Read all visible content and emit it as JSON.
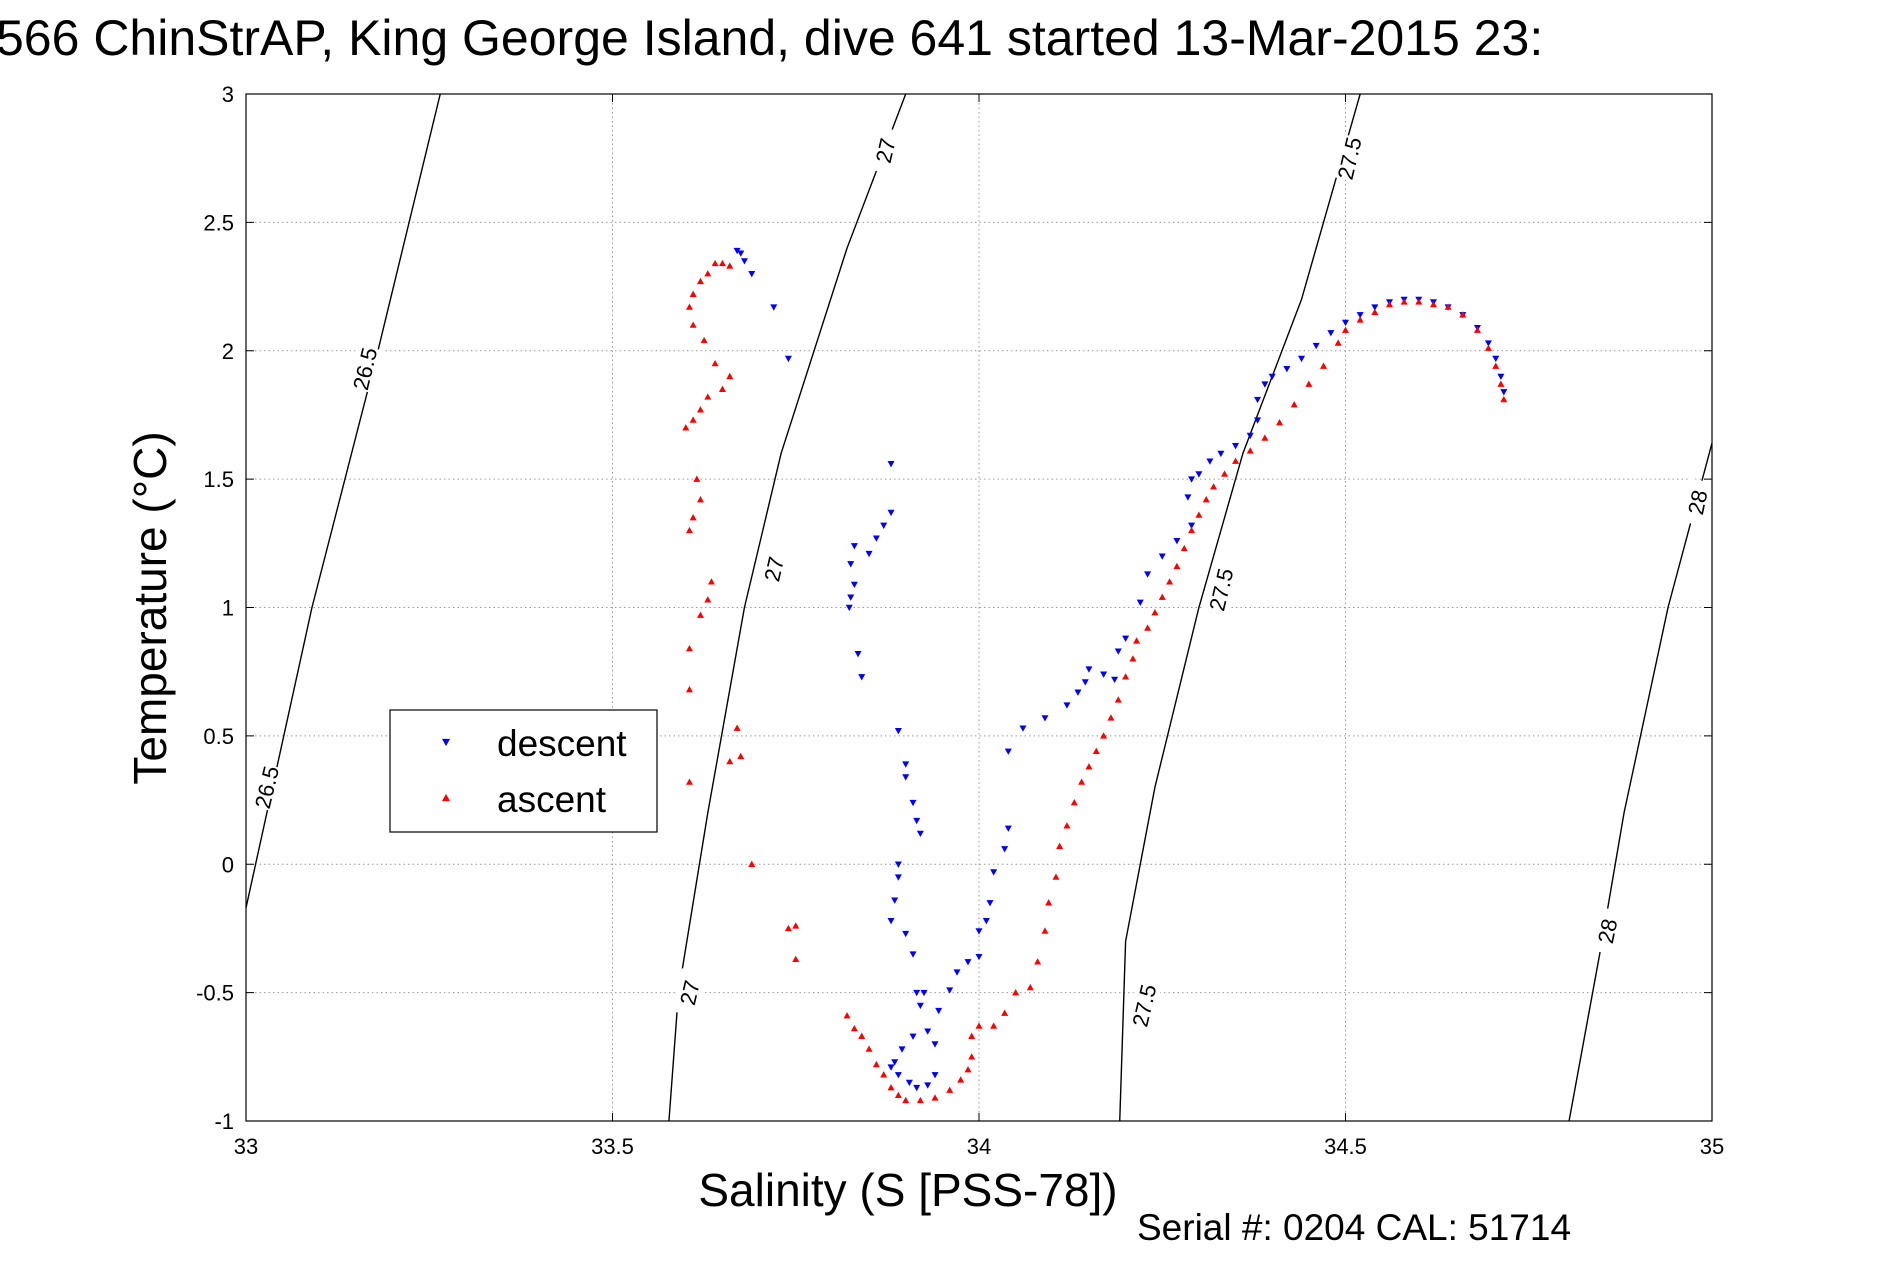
{
  "figure": {
    "title": "566 ChinStrAP, King George Island, dive 641 started 13-Mar-2015 23:",
    "footer": "Serial #: 0204  CAL: 51714"
  },
  "chart_data": {
    "type": "scatter",
    "title": "566 ChinStrAP, King George Island, dive 641 started 13-Mar-2015 23:",
    "xlabel": "Salinity (S [PSS-78])",
    "ylabel": "Temperature (°C)",
    "xlim": [
      33,
      35
    ],
    "ylim": [
      -1,
      3
    ],
    "xticks": [
      33,
      33.5,
      34,
      34.5,
      35
    ],
    "xtick_labels": [
      "33",
      "33.5",
      "34",
      "34.5",
      "35"
    ],
    "yticks": [
      -1,
      -0.5,
      0,
      0.5,
      1,
      1.5,
      2,
      2.5,
      3
    ],
    "ytick_labels": [
      "-1",
      "-0.5",
      "0",
      "0.5",
      "1",
      "1.5",
      "2",
      "2.5",
      "3"
    ],
    "grid": true,
    "legend_position": "left-middle",
    "density_contours": [
      {
        "level": "26.5",
        "points": [
          [
            33.265,
            3
          ],
          [
            33.18,
            2.0
          ],
          [
            33.09,
            1.0
          ],
          [
            33.0,
            -0.17
          ]
        ],
        "labels": [
          {
            "s": 33.162,
            "t": 1.93
          },
          {
            "s": 33.028,
            "t": 0.3
          }
        ]
      },
      {
        "level": "27",
        "points": [
          [
            33.9,
            3
          ],
          [
            33.82,
            2.4
          ],
          [
            33.73,
            1.6
          ],
          [
            33.68,
            1.0
          ],
          [
            33.63,
            0.2
          ],
          [
            33.59,
            -0.5
          ],
          [
            33.577,
            -1
          ]
        ],
        "labels": [
          {
            "s": 33.872,
            "t": 2.78
          },
          {
            "s": 33.72,
            "t": 1.15
          },
          {
            "s": 33.605,
            "t": -0.5
          }
        ]
      },
      {
        "level": "27.5",
        "points": [
          [
            34.52,
            3
          ],
          [
            34.44,
            2.2
          ],
          [
            34.36,
            1.6
          ],
          [
            34.3,
            1.0
          ],
          [
            34.24,
            0.3
          ],
          [
            34.2,
            -0.3
          ],
          [
            34.192,
            -1
          ]
        ],
        "labels": [
          {
            "s": 34.505,
            "t": 2.75
          },
          {
            "s": 34.33,
            "t": 1.07
          },
          {
            "s": 34.225,
            "t": -0.55
          }
        ]
      },
      {
        "level": "28",
        "points": [
          [
            35,
            1.64
          ],
          [
            34.94,
            1.0
          ],
          [
            34.88,
            0.2
          ],
          [
            34.85,
            -0.3
          ],
          [
            34.805,
            -1
          ]
        ],
        "labels": [
          {
            "s": 34.98,
            "t": 1.41
          },
          {
            "s": 34.857,
            "t": -0.26
          }
        ]
      }
    ],
    "series": [
      {
        "name": "descent",
        "color": "#0000ff",
        "marker": "triangle-down",
        "points": [
          [
            33.67,
            2.39
          ],
          [
            33.675,
            2.38
          ],
          [
            33.68,
            2.35
          ],
          [
            33.69,
            2.3
          ],
          [
            33.72,
            2.17
          ],
          [
            33.74,
            1.97
          ],
          [
            33.88,
            1.56
          ],
          [
            33.88,
            1.37
          ],
          [
            33.87,
            1.32
          ],
          [
            33.86,
            1.27
          ],
          [
            33.85,
            1.21
          ],
          [
            33.83,
            1.24
          ],
          [
            33.825,
            1.17
          ],
          [
            33.83,
            1.09
          ],
          [
            33.825,
            1.04
          ],
          [
            33.823,
            1.0
          ],
          [
            33.835,
            0.82
          ],
          [
            33.84,
            0.73
          ],
          [
            33.89,
            0.52
          ],
          [
            33.9,
            0.39
          ],
          [
            33.9,
            0.34
          ],
          [
            33.91,
            0.24
          ],
          [
            33.915,
            0.17
          ],
          [
            33.92,
            0.12
          ],
          [
            33.89,
            0.0
          ],
          [
            33.89,
            -0.05
          ],
          [
            33.885,
            -0.14
          ],
          [
            33.88,
            -0.22
          ],
          [
            33.9,
            -0.27
          ],
          [
            33.91,
            -0.35
          ],
          [
            33.915,
            -0.5
          ],
          [
            33.925,
            -0.5
          ],
          [
            33.92,
            -0.55
          ],
          [
            33.91,
            -0.67
          ],
          [
            33.895,
            -0.72
          ],
          [
            33.885,
            -0.77
          ],
          [
            33.88,
            -0.79
          ],
          [
            33.89,
            -0.82
          ],
          [
            33.905,
            -0.85
          ],
          [
            33.915,
            -0.87
          ],
          [
            33.93,
            -0.86
          ],
          [
            33.94,
            -0.82
          ],
          [
            33.94,
            -0.7
          ],
          [
            33.93,
            -0.65
          ],
          [
            33.945,
            -0.57
          ],
          [
            33.96,
            -0.49
          ],
          [
            33.97,
            -0.42
          ],
          [
            33.985,
            -0.38
          ],
          [
            34.0,
            -0.36
          ],
          [
            34.0,
            -0.26
          ],
          [
            34.01,
            -0.22
          ],
          [
            34.015,
            -0.15
          ],
          [
            34.02,
            -0.03
          ],
          [
            34.035,
            0.06
          ],
          [
            34.04,
            0.14
          ],
          [
            34.04,
            0.44
          ],
          [
            34.06,
            0.53
          ],
          [
            34.09,
            0.57
          ],
          [
            34.12,
            0.62
          ],
          [
            34.135,
            0.67
          ],
          [
            34.145,
            0.71
          ],
          [
            34.15,
            0.76
          ],
          [
            34.17,
            0.74
          ],
          [
            34.185,
            0.72
          ],
          [
            34.19,
            0.83
          ],
          [
            34.2,
            0.88
          ],
          [
            34.22,
            1.02
          ],
          [
            34.23,
            1.13
          ],
          [
            34.25,
            1.2
          ],
          [
            34.27,
            1.26
          ],
          [
            34.29,
            1.32
          ],
          [
            34.285,
            1.43
          ],
          [
            34.29,
            1.5
          ],
          [
            34.3,
            1.52
          ],
          [
            34.315,
            1.57
          ],
          [
            34.33,
            1.6
          ],
          [
            34.35,
            1.63
          ],
          [
            34.37,
            1.67
          ],
          [
            34.38,
            1.73
          ],
          [
            34.38,
            1.81
          ],
          [
            34.39,
            1.87
          ],
          [
            34.4,
            1.9
          ],
          [
            34.42,
            1.93
          ],
          [
            34.44,
            1.97
          ],
          [
            34.46,
            2.02
          ],
          [
            34.48,
            2.07
          ],
          [
            34.5,
            2.11
          ],
          [
            34.52,
            2.14
          ],
          [
            34.54,
            2.17
          ],
          [
            34.56,
            2.19
          ],
          [
            34.58,
            2.2
          ],
          [
            34.6,
            2.2
          ],
          [
            34.62,
            2.19
          ],
          [
            34.64,
            2.17
          ],
          [
            34.66,
            2.14
          ],
          [
            34.68,
            2.09
          ],
          [
            34.695,
            2.03
          ],
          [
            34.705,
            1.97
          ],
          [
            34.712,
            1.9
          ],
          [
            34.716,
            1.84
          ]
        ]
      },
      {
        "name": "ascent",
        "color": "#ff0000",
        "marker": "triangle-up",
        "points": [
          [
            33.66,
            2.33
          ],
          [
            33.65,
            2.34
          ],
          [
            33.64,
            2.34
          ],
          [
            33.63,
            2.3
          ],
          [
            33.62,
            2.27
          ],
          [
            33.61,
            2.22
          ],
          [
            33.605,
            2.17
          ],
          [
            33.61,
            2.1
          ],
          [
            33.625,
            2.04
          ],
          [
            33.64,
            1.95
          ],
          [
            33.66,
            1.9
          ],
          [
            33.65,
            1.85
          ],
          [
            33.63,
            1.82
          ],
          [
            33.62,
            1.77
          ],
          [
            33.61,
            1.73
          ],
          [
            33.6,
            1.7
          ],
          [
            33.615,
            1.5
          ],
          [
            33.62,
            1.42
          ],
          [
            33.61,
            1.35
          ],
          [
            33.605,
            1.3
          ],
          [
            33.635,
            1.1
          ],
          [
            33.63,
            1.03
          ],
          [
            33.62,
            0.97
          ],
          [
            33.605,
            0.84
          ],
          [
            33.605,
            0.68
          ],
          [
            33.67,
            0.53
          ],
          [
            33.66,
            0.4
          ],
          [
            33.675,
            0.42
          ],
          [
            33.605,
            0.32
          ],
          [
            33.69,
            0.0
          ],
          [
            33.74,
            -0.25
          ],
          [
            33.75,
            -0.24
          ],
          [
            33.75,
            -0.37
          ],
          [
            33.82,
            -0.59
          ],
          [
            33.83,
            -0.64
          ],
          [
            33.84,
            -0.67
          ],
          [
            33.85,
            -0.72
          ],
          [
            33.86,
            -0.78
          ],
          [
            33.87,
            -0.82
          ],
          [
            33.88,
            -0.87
          ],
          [
            33.89,
            -0.9
          ],
          [
            33.9,
            -0.92
          ],
          [
            33.92,
            -0.92
          ],
          [
            33.94,
            -0.91
          ],
          [
            33.96,
            -0.88
          ],
          [
            33.975,
            -0.84
          ],
          [
            33.985,
            -0.8
          ],
          [
            33.99,
            -0.75
          ],
          [
            33.99,
            -0.67
          ],
          [
            34.0,
            -0.63
          ],
          [
            34.02,
            -0.63
          ],
          [
            34.035,
            -0.58
          ],
          [
            34.05,
            -0.5
          ],
          [
            34.07,
            -0.48
          ],
          [
            34.08,
            -0.38
          ],
          [
            34.09,
            -0.26
          ],
          [
            34.095,
            -0.15
          ],
          [
            34.105,
            -0.05
          ],
          [
            34.11,
            0.07
          ],
          [
            34.12,
            0.15
          ],
          [
            34.13,
            0.24
          ],
          [
            34.14,
            0.32
          ],
          [
            34.15,
            0.38
          ],
          [
            34.16,
            0.44
          ],
          [
            34.17,
            0.5
          ],
          [
            34.18,
            0.57
          ],
          [
            34.19,
            0.64
          ],
          [
            34.2,
            0.73
          ],
          [
            34.21,
            0.8
          ],
          [
            34.215,
            0.87
          ],
          [
            34.23,
            0.92
          ],
          [
            34.24,
            0.98
          ],
          [
            34.25,
            1.04
          ],
          [
            34.26,
            1.1
          ],
          [
            34.27,
            1.16
          ],
          [
            34.28,
            1.23
          ],
          [
            34.29,
            1.3
          ],
          [
            34.3,
            1.36
          ],
          [
            34.31,
            1.42
          ],
          [
            34.32,
            1.47
          ],
          [
            34.335,
            1.52
          ],
          [
            34.35,
            1.57
          ],
          [
            34.37,
            1.61
          ],
          [
            34.39,
            1.66
          ],
          [
            34.41,
            1.72
          ],
          [
            34.43,
            1.79
          ],
          [
            34.45,
            1.87
          ],
          [
            34.47,
            1.94
          ],
          [
            34.49,
            2.03
          ],
          [
            34.5,
            2.08
          ],
          [
            34.52,
            2.12
          ],
          [
            34.54,
            2.15
          ],
          [
            34.56,
            2.18
          ],
          [
            34.58,
            2.19
          ],
          [
            34.6,
            2.19
          ],
          [
            34.62,
            2.18
          ],
          [
            34.64,
            2.17
          ],
          [
            34.66,
            2.14
          ],
          [
            34.68,
            2.08
          ],
          [
            34.695,
            2.01
          ],
          [
            34.705,
            1.94
          ],
          [
            34.712,
            1.87
          ],
          [
            34.716,
            1.81
          ]
        ]
      }
    ]
  }
}
